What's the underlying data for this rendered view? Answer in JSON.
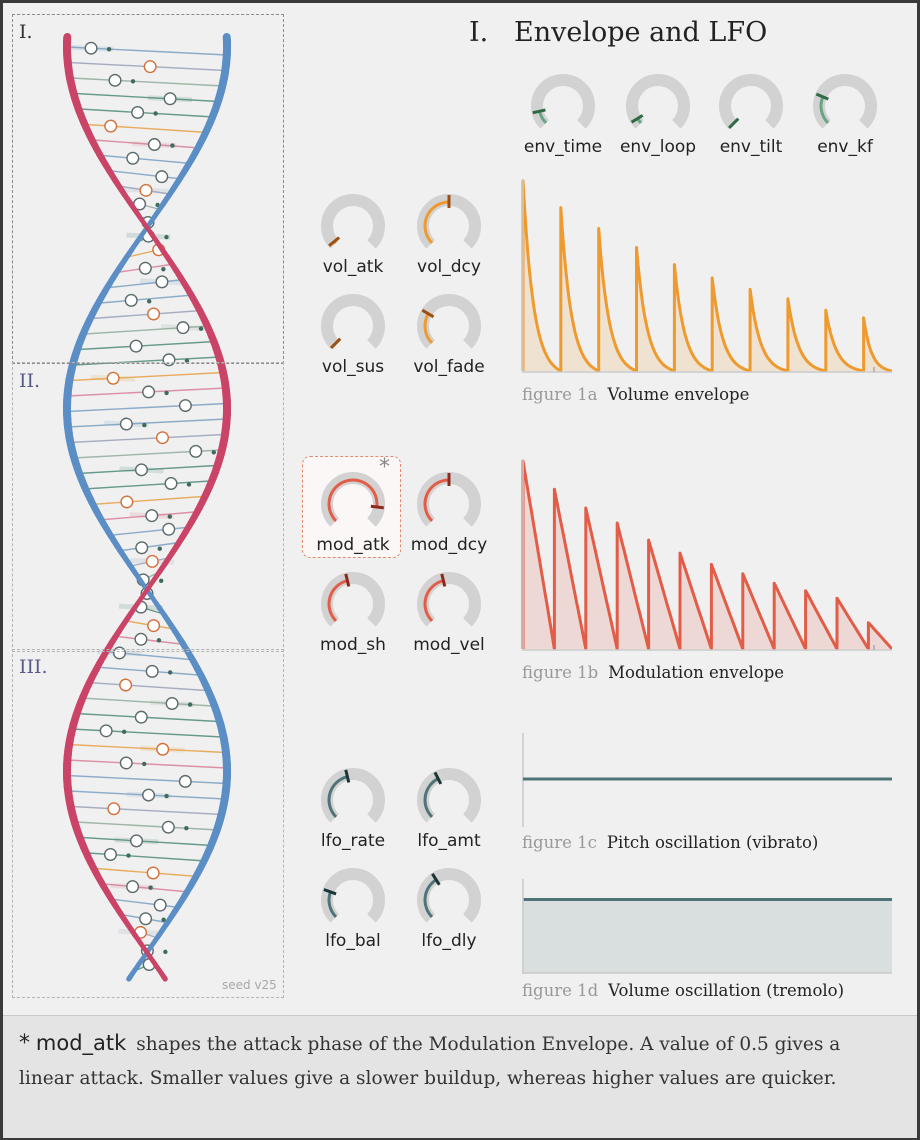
{
  "header": {
    "section_number": "I.",
    "title": "Envelope and LFO"
  },
  "dna_panel": {
    "sections": [
      {
        "label": "I.",
        "color": "#333333"
      },
      {
        "label": "II.",
        "color": "#5a5a8a"
      },
      {
        "label": "III.",
        "color": "#5a5a8a"
      }
    ],
    "seed_label": "seed v25",
    "strand_colors": {
      "red": "#c94466",
      "blue": "#5b8ec4"
    }
  },
  "knob_groups": {
    "env": {
      "color": "#6aa583",
      "marker": "#2f6a45",
      "knobs": [
        {
          "name": "env_time",
          "value": 0.12
        },
        {
          "name": "env_loop",
          "value": 0.05
        },
        {
          "name": "env_tilt",
          "value": 0.0
        },
        {
          "name": "env_kf",
          "value": 0.25
        }
      ]
    },
    "vol": {
      "color": "#ef9a2e",
      "marker": "#9b4f12",
      "knobs": [
        {
          "name": "vol_atk",
          "value": 0.02
        },
        {
          "name": "vol_dcy",
          "value": 0.5
        },
        {
          "name": "vol_sus",
          "value": 0.0
        },
        {
          "name": "vol_fade",
          "value": 0.28
        }
      ]
    },
    "mod": {
      "color": "#e25d48",
      "marker": "#8c2a1e",
      "knobs": [
        {
          "name": "mod_atk",
          "value": 0.86,
          "highlighted": true
        },
        {
          "name": "mod_dcy",
          "value": 0.5
        },
        {
          "name": "mod_sh",
          "value": 0.45
        },
        {
          "name": "mod_vel",
          "value": 0.45
        }
      ]
    },
    "lfo": {
      "color": "#4f7478",
      "marker": "#1c3436",
      "knobs": [
        {
          "name": "lfo_rate",
          "value": 0.45
        },
        {
          "name": "lfo_amt",
          "value": 0.4
        },
        {
          "name": "lfo_bal",
          "value": 0.24
        },
        {
          "name": "lfo_dly",
          "value": 0.38
        }
      ]
    }
  },
  "highlight_star": "*",
  "figures": [
    {
      "number": "figure 1a",
      "caption": "Volume envelope"
    },
    {
      "number": "figure 1b",
      "caption": "Modulation envelope"
    },
    {
      "number": "figure 1c",
      "caption": "Pitch oscillation (vibrato)"
    },
    {
      "number": "figure 1d",
      "caption": "Volume oscillation (tremolo)"
    }
  ],
  "chart_data": [
    {
      "type": "line",
      "name": "figure 1a",
      "color": "#ef9a2e",
      "peak_count": 10,
      "peaks": [
        1.0,
        0.86,
        0.75,
        0.65,
        0.56,
        0.49,
        0.43,
        0.38,
        0.32,
        0.28
      ],
      "shape": "instant attack, exponential decay",
      "fill": true
    },
    {
      "type": "line",
      "name": "figure 1b",
      "color": "#e25d48",
      "peak_count": 12,
      "peaks": [
        1.0,
        0.85,
        0.75,
        0.67,
        0.58,
        0.51,
        0.45,
        0.4,
        0.35,
        0.31,
        0.27,
        0.14
      ],
      "shape": "instant attack, linear decay",
      "fill": true
    },
    {
      "type": "line",
      "name": "figure 1c",
      "color": "#4f7478",
      "y": 0.35,
      "shape": "flat"
    },
    {
      "type": "area",
      "name": "figure 1d",
      "color": "#4f7478",
      "y": 0.88,
      "shape": "flat, filled"
    }
  ],
  "footer": {
    "star": "*",
    "term": "mod_atk",
    "text": "shapes the attack phase of the Modulation Envelope. A value of 0.5 gives a linear attack. Smaller values give a slower buildup, whereas higher values are quicker."
  }
}
